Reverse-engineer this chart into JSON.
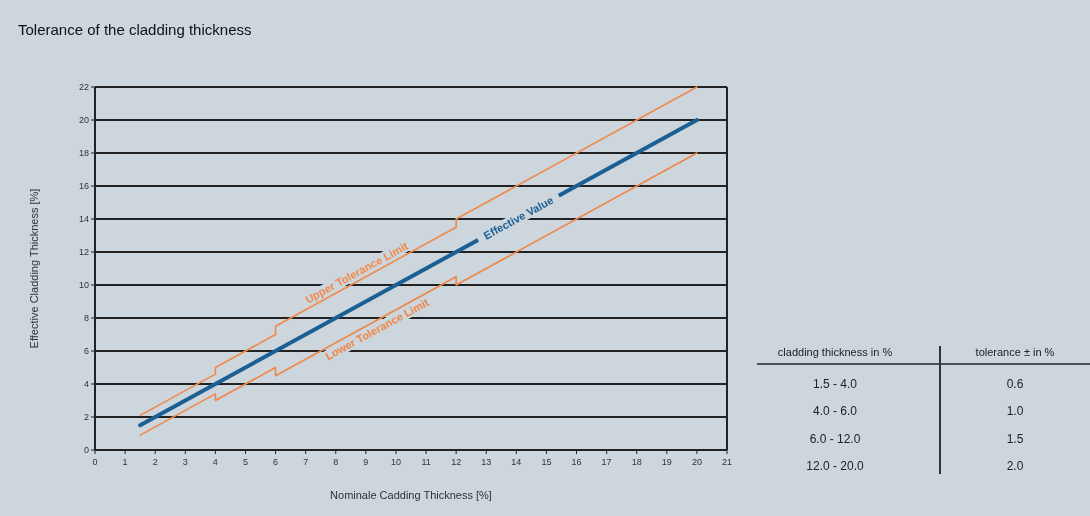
{
  "chart_data": {
    "type": "line",
    "title": "Tolerance of the cladding thickness",
    "xlabel": "Nominale Cadding Thickness [%]",
    "ylabel": "Effective Cladding Thickness [%]",
    "xlim": [
      0,
      21
    ],
    "ylim": [
      0,
      22
    ],
    "xticks": [
      0,
      1,
      2,
      3,
      4,
      5,
      6,
      7,
      8,
      9,
      10,
      11,
      12,
      13,
      14,
      15,
      16,
      17,
      18,
      19,
      20,
      21
    ],
    "yticks": [
      0,
      2,
      4,
      6,
      8,
      10,
      12,
      14,
      16,
      18,
      20,
      22
    ],
    "grid": "y",
    "series": [
      {
        "name": "Upper Tolerance Limit",
        "color": "#f08a4b",
        "x": [
          1.5,
          4,
          4,
          6,
          6,
          12,
          12,
          20
        ],
        "values": [
          2.1,
          4.6,
          5.0,
          7.0,
          7.5,
          13.5,
          14.0,
          22.0
        ]
      },
      {
        "name": "Effective Value",
        "color": "#1c5f92",
        "x": [
          1.5,
          20
        ],
        "values": [
          1.5,
          20
        ]
      },
      {
        "name": "Lower Tolerance Limit",
        "color": "#ee8748",
        "x": [
          1.5,
          4,
          4,
          6,
          6,
          12,
          12,
          20
        ],
        "values": [
          0.9,
          3.4,
          3.0,
          5.0,
          4.5,
          10.5,
          10.0,
          18.0
        ]
      }
    ],
    "annotations": [
      "cladding thickness in %",
      "tolerance ± in %",
      "1.5 - 4.0",
      "0.6",
      "4.0 - 6.0",
      "1.0",
      "6.0 - 12.0",
      "1.5",
      "12.0 - 20.0",
      "2.0"
    ]
  }
}
